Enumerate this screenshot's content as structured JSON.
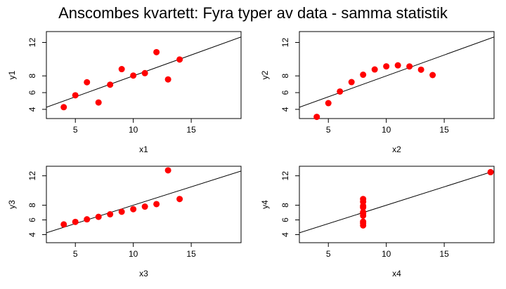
{
  "title": "Anscombes kvartett: Fyra typer av data - samma statistik",
  "chart_data": [
    {
      "type": "scatter",
      "xlabel": "x1",
      "ylabel": "y1",
      "xlim": [
        2.5,
        19.3
      ],
      "ylim": [
        2.9,
        13.3
      ],
      "xticks": [
        5,
        10,
        15
      ],
      "yticks": [
        4,
        6,
        8,
        12
      ],
      "x": [
        10,
        8,
        13,
        9,
        11,
        14,
        6,
        4,
        12,
        7,
        5
      ],
      "y": [
        8.04,
        6.95,
        7.58,
        8.81,
        8.33,
        9.96,
        7.24,
        4.26,
        10.84,
        4.82,
        5.68
      ],
      "fit": {
        "intercept": 3.0,
        "slope": 0.5
      },
      "point_color": "#ff0000",
      "line_color": "#000000"
    },
    {
      "type": "scatter",
      "xlabel": "x2",
      "ylabel": "y2",
      "xlim": [
        2.5,
        19.3
      ],
      "ylim": [
        2.9,
        13.3
      ],
      "xticks": [
        5,
        10,
        15
      ],
      "yticks": [
        4,
        6,
        8,
        12
      ],
      "x": [
        10,
        8,
        13,
        9,
        11,
        14,
        6,
        4,
        12,
        7,
        5
      ],
      "y": [
        9.14,
        8.14,
        8.74,
        8.77,
        9.26,
        8.1,
        6.13,
        3.1,
        9.13,
        7.26,
        4.74
      ],
      "fit": {
        "intercept": 3.0,
        "slope": 0.5
      },
      "point_color": "#ff0000",
      "line_color": "#000000"
    },
    {
      "type": "scatter",
      "xlabel": "x3",
      "ylabel": "y3",
      "xlim": [
        2.5,
        19.3
      ],
      "ylim": [
        2.9,
        13.3
      ],
      "xticks": [
        5,
        10,
        15
      ],
      "yticks": [
        4,
        6,
        8,
        12
      ],
      "x": [
        10,
        8,
        13,
        9,
        11,
        14,
        6,
        4,
        12,
        7,
        5
      ],
      "y": [
        7.46,
        6.77,
        12.74,
        7.11,
        7.81,
        8.84,
        6.08,
        5.39,
        8.15,
        6.42,
        5.73
      ],
      "fit": {
        "intercept": 3.0,
        "slope": 0.5
      },
      "point_color": "#ff0000",
      "line_color": "#000000"
    },
    {
      "type": "scatter",
      "xlabel": "x4",
      "ylabel": "y4",
      "xlim": [
        2.5,
        19.3
      ],
      "ylim": [
        2.9,
        13.3
      ],
      "xticks": [
        5,
        10,
        15
      ],
      "yticks": [
        4,
        6,
        8,
        12
      ],
      "x": [
        8,
        8,
        8,
        8,
        8,
        8,
        8,
        19,
        8,
        8,
        8
      ],
      "y": [
        6.58,
        5.76,
        7.71,
        8.84,
        8.47,
        7.04,
        5.25,
        12.5,
        5.56,
        7.91,
        6.89
      ],
      "fit": {
        "intercept": 3.0,
        "slope": 0.5
      },
      "point_color": "#ff0000",
      "line_color": "#000000"
    }
  ]
}
